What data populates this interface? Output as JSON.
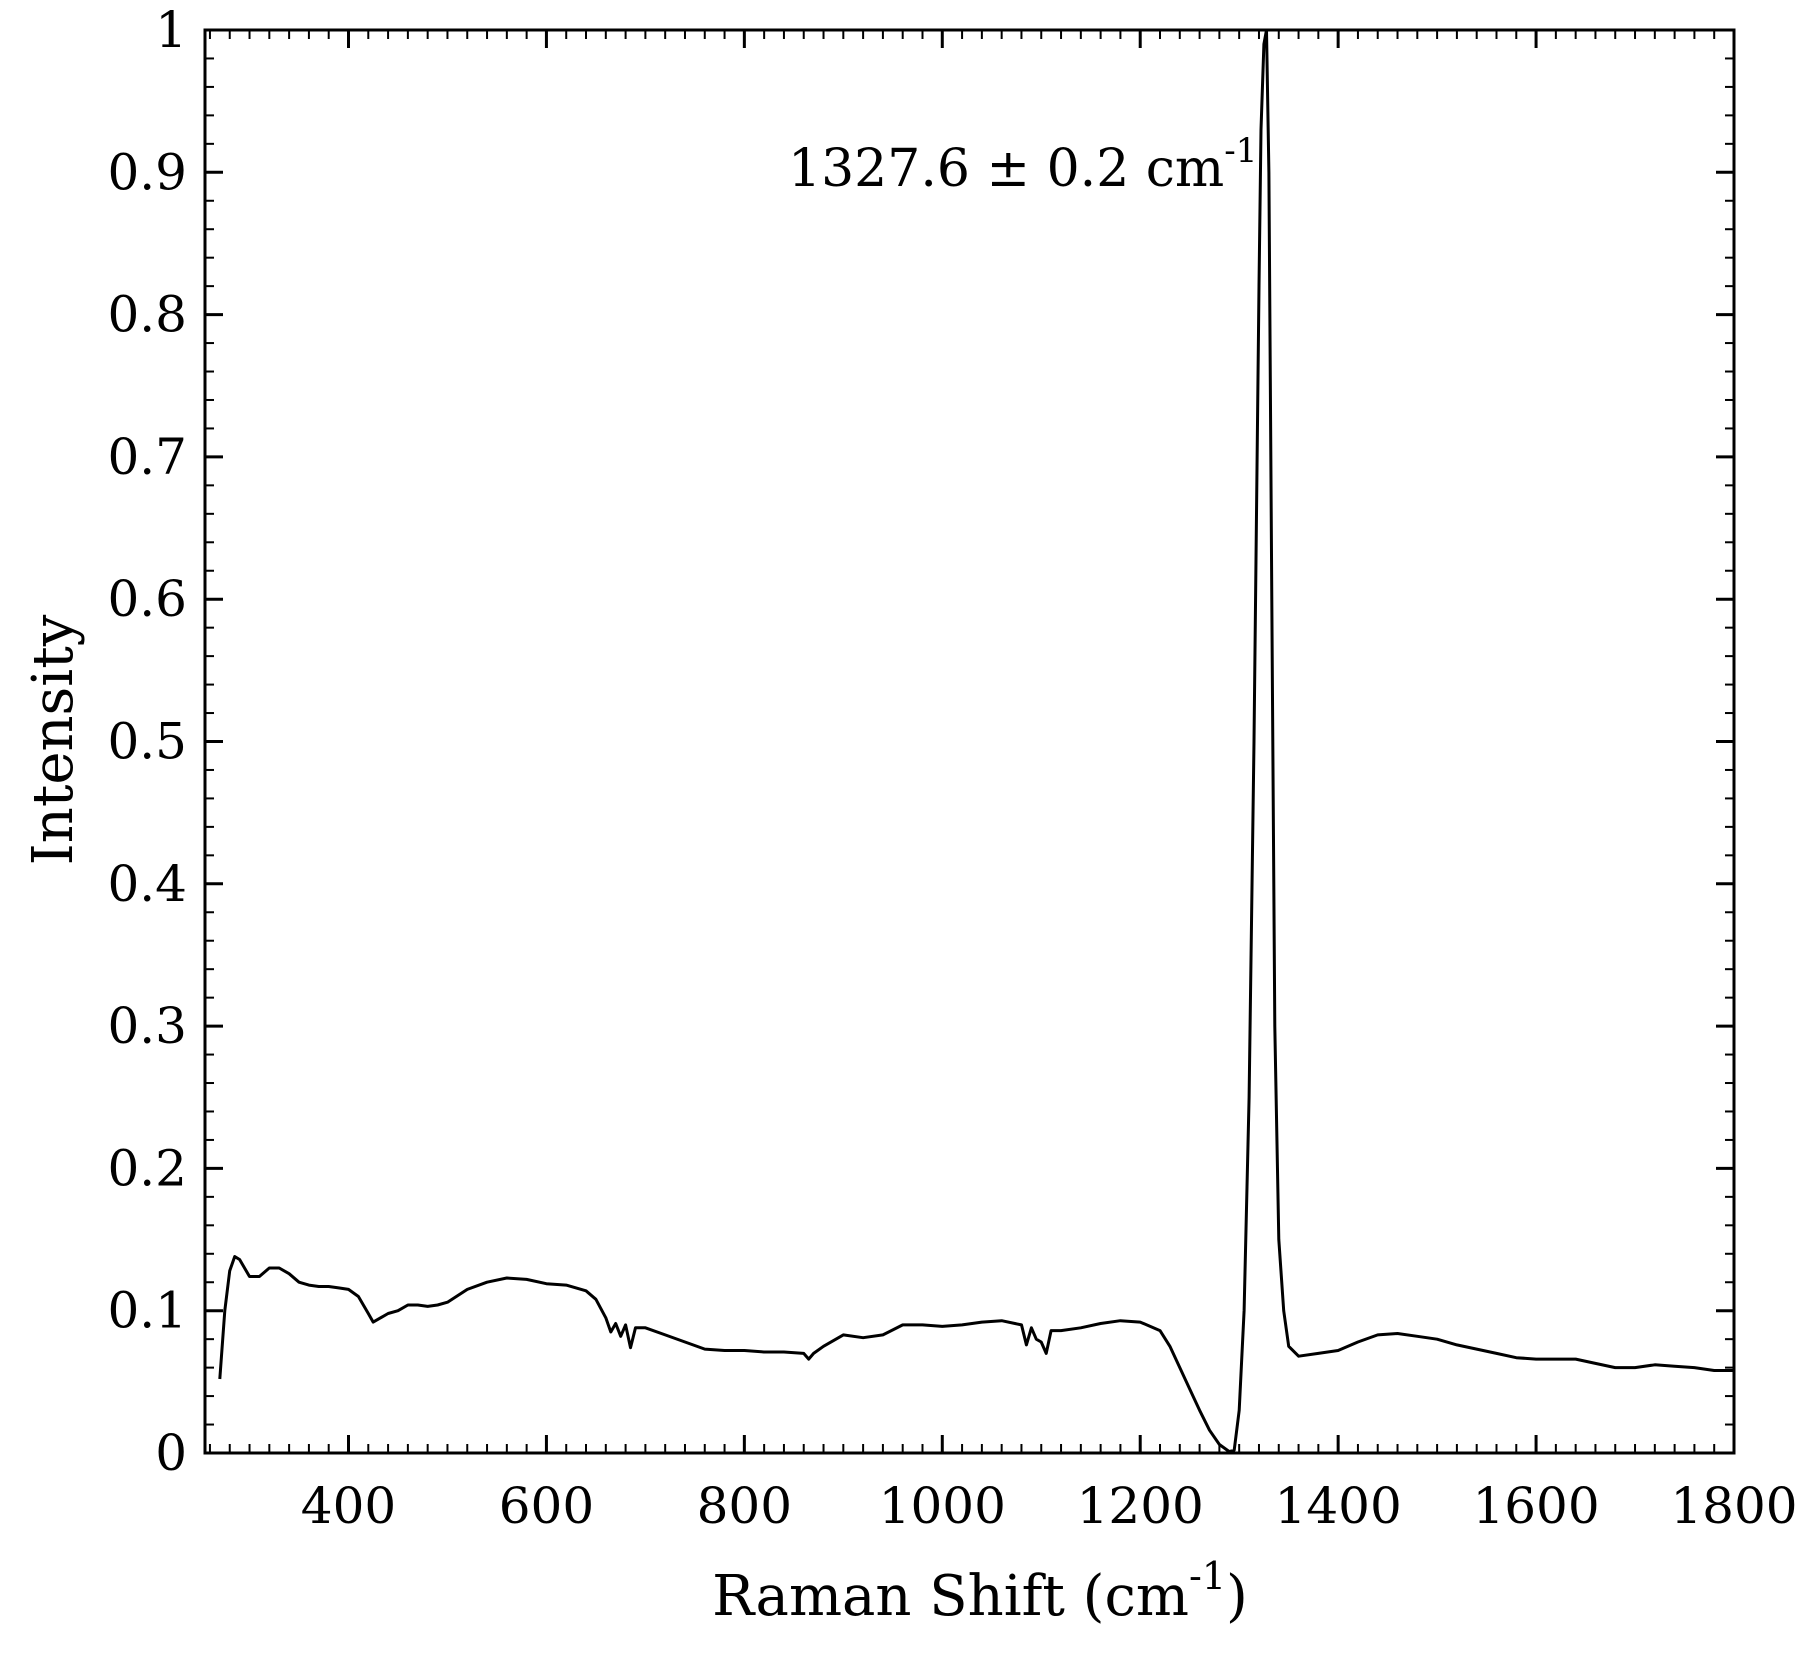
{
  "chart_data": {
    "type": "line",
    "xlabel": "Raman Shift (cm",
    "xlabel_sup": "-1",
    "xlabel_end": ")",
    "ylabel": "Intensity",
    "xlim": [
      255,
      1800
    ],
    "ylim": [
      0,
      1.0
    ],
    "x_ticks": [
      400,
      600,
      800,
      1000,
      1200,
      1400,
      1600,
      1800
    ],
    "x_tick_labels": [
      "400",
      "600",
      "800",
      "1000",
      "1200",
      "1400",
      "1600",
      "1800"
    ],
    "y_ticks": [
      0,
      0.1,
      0.2,
      0.3,
      0.4,
      0.5,
      0.6,
      0.7,
      0.8,
      0.9,
      1.0
    ],
    "y_tick_labels": [
      "0",
      "0.1",
      "0.2",
      "0.3",
      "0.4",
      "0.5",
      "0.6",
      "0.7",
      "0.8",
      "0.9",
      "1"
    ],
    "grid": false,
    "line_color": "#000000",
    "annotation": {
      "text": "1327.6 ± 0.2 cm",
      "sup": "-1",
      "x": 1327.6
    },
    "series": [
      {
        "x": [
          270,
          275,
          280,
          285,
          290,
          300,
          310,
          320,
          330,
          340,
          350,
          360,
          370,
          380,
          390,
          400,
          410,
          420,
          425,
          430,
          440,
          450,
          460,
          470,
          480,
          490,
          500,
          520,
          540,
          560,
          580,
          600,
          620,
          640,
          650,
          660,
          665,
          670,
          675,
          680,
          685,
          690,
          700,
          720,
          740,
          760,
          780,
          800,
          820,
          840,
          860,
          865,
          870,
          880,
          900,
          920,
          940,
          960,
          980,
          1000,
          1020,
          1040,
          1060,
          1080,
          1085,
          1090,
          1095,
          1100,
          1105,
          1110,
          1120,
          1140,
          1160,
          1180,
          1200,
          1220,
          1230,
          1240,
          1250,
          1260,
          1270,
          1280,
          1290,
          1295,
          1300,
          1305,
          1310,
          1315,
          1320,
          1322,
          1325,
          1327.6,
          1330,
          1333,
          1336,
          1340,
          1345,
          1350,
          1360,
          1380,
          1400,
          1420,
          1440,
          1460,
          1480,
          1500,
          1520,
          1540,
          1560,
          1580,
          1600,
          1620,
          1640,
          1660,
          1680,
          1700,
          1720,
          1740,
          1760,
          1780,
          1800
        ],
        "y": [
          0.052,
          0.1,
          0.128,
          0.138,
          0.136,
          0.124,
          0.124,
          0.13,
          0.13,
          0.126,
          0.12,
          0.118,
          0.117,
          0.117,
          0.116,
          0.115,
          0.11,
          0.098,
          0.092,
          0.094,
          0.098,
          0.1,
          0.104,
          0.104,
          0.103,
          0.104,
          0.106,
          0.115,
          0.12,
          0.123,
          0.122,
          0.119,
          0.118,
          0.114,
          0.108,
          0.095,
          0.085,
          0.091,
          0.082,
          0.09,
          0.074,
          0.088,
          0.088,
          0.083,
          0.078,
          0.073,
          0.072,
          0.072,
          0.071,
          0.071,
          0.07,
          0.066,
          0.07,
          0.075,
          0.083,
          0.081,
          0.083,
          0.09,
          0.09,
          0.089,
          0.09,
          0.092,
          0.093,
          0.09,
          0.076,
          0.088,
          0.08,
          0.078,
          0.07,
          0.086,
          0.086,
          0.088,
          0.091,
          0.093,
          0.092,
          0.086,
          0.075,
          0.06,
          0.045,
          0.03,
          0.016,
          0.006,
          0.001,
          0.002,
          0.03,
          0.1,
          0.25,
          0.5,
          0.82,
          0.93,
          0.99,
          1.0,
          0.9,
          0.6,
          0.3,
          0.15,
          0.1,
          0.075,
          0.068,
          0.07,
          0.072,
          0.078,
          0.083,
          0.084,
          0.082,
          0.08,
          0.076,
          0.073,
          0.07,
          0.067,
          0.066,
          0.066,
          0.066,
          0.063,
          0.06,
          0.06,
          0.062,
          0.061,
          0.06,
          0.058,
          0.058
        ]
      }
    ]
  }
}
